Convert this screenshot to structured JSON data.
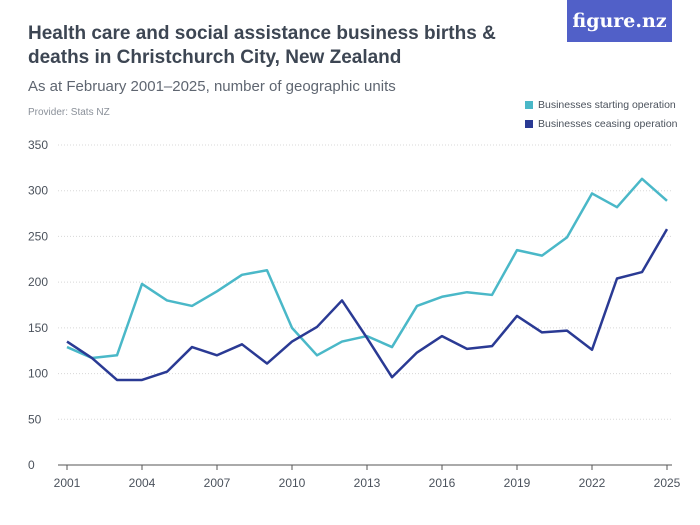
{
  "header": {
    "title": "Health care and social assistance business births & deaths in Christchurch City, New Zealand",
    "subtitle": "As at February 2001–2025, number of geographic units",
    "provider": "Provider: Stats NZ",
    "logo": "figure.nz"
  },
  "chart_data": {
    "type": "line",
    "title": "Health care and social assistance business births & deaths in Christchurch City, New Zealand",
    "xlabel": "",
    "ylabel": "",
    "x": [
      2001,
      2002,
      2003,
      2004,
      2005,
      2006,
      2007,
      2008,
      2009,
      2010,
      2011,
      2012,
      2013,
      2014,
      2015,
      2016,
      2017,
      2018,
      2019,
      2020,
      2021,
      2022,
      2023,
      2024,
      2025
    ],
    "xticks": [
      "2001",
      "2004",
      "2007",
      "2010",
      "2013",
      "2016",
      "2019",
      "2022",
      "2025"
    ],
    "yticks": [
      "0",
      "50",
      "100",
      "150",
      "200",
      "250",
      "300",
      "350"
    ],
    "ylim": [
      0,
      350
    ],
    "grid": true,
    "legend": "top-right",
    "series": [
      {
        "name": "Businesses starting operation",
        "color": "#4ab8c8",
        "values": [
          129,
          117,
          120,
          198,
          180,
          174,
          190,
          208,
          213,
          150,
          120,
          135,
          141,
          129,
          174,
          184,
          189,
          186,
          235,
          229,
          249,
          297,
          282,
          313,
          289
        ]
      },
      {
        "name": "Businesses ceasing operation",
        "color": "#2a3a94",
        "values": [
          135,
          117,
          93,
          93,
          102,
          129,
          120,
          132,
          111,
          135,
          151,
          180,
          139,
          96,
          123,
          141,
          127,
          130,
          163,
          145,
          147,
          126,
          204,
          211,
          258
        ]
      }
    ]
  }
}
